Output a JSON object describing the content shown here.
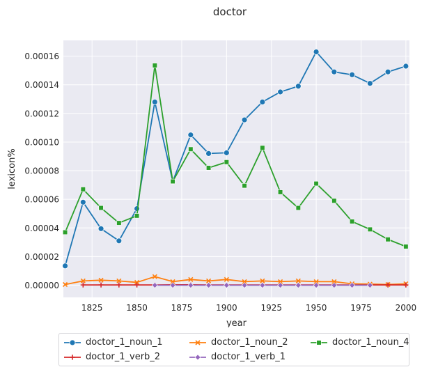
{
  "chart_data": {
    "type": "line",
    "title": "doctor",
    "xlabel": "year",
    "ylabel": "lexicon%",
    "xlim": [
      1809,
      2002
    ],
    "ylim": [
      -8.5e-06,
      0.000171
    ],
    "xticks": [
      1825,
      1850,
      1875,
      1900,
      1925,
      1950,
      1975,
      2000
    ],
    "xtick_labels": [
      "1825",
      "1850",
      "1875",
      "1900",
      "1925",
      "1950",
      "1975",
      "2000"
    ],
    "yticks": [
      0,
      2e-05,
      4e-05,
      6e-05,
      8e-05,
      0.0001,
      0.00012,
      0.00014,
      0.00016
    ],
    "ytick_labels": [
      "0.00000",
      "0.00002",
      "0.00004",
      "0.00006",
      "0.00008",
      "0.00010",
      "0.00012",
      "0.00014",
      "0.00016"
    ],
    "grid": true,
    "legend_position": "bottom",
    "series": [
      {
        "name": "doctor_1_noun_1",
        "color": "#1f77b4",
        "marker": "circle",
        "x": [
          1810,
          1820,
          1830,
          1840,
          1850,
          1860,
          1870,
          1880,
          1890,
          1900,
          1910,
          1920,
          1930,
          1940,
          1950,
          1960,
          1970,
          1980,
          1990,
          2000
        ],
        "values": [
          1.35e-05,
          5.8e-05,
          3.95e-05,
          3.1e-05,
          5.35e-05,
          0.000128,
          7.25e-05,
          0.000105,
          9.2e-05,
          9.25e-05,
          0.0001155,
          0.000128,
          0.000135,
          0.000139,
          0.000163,
          0.000149,
          0.000147,
          0.000141,
          0.000149,
          0.000153
        ]
      },
      {
        "name": "doctor_1_noun_2",
        "color": "#ff7f0e",
        "marker": "x",
        "x": [
          1810,
          1820,
          1830,
          1840,
          1850,
          1860,
          1870,
          1880,
          1890,
          1900,
          1910,
          1920,
          1930,
          1940,
          1950,
          1960,
          1970,
          1980,
          1990,
          2000
        ],
        "values": [
          5e-07,
          3e-06,
          3.5e-06,
          3e-06,
          2e-06,
          6e-06,
          2.5e-06,
          4e-06,
          3e-06,
          4e-06,
          2.5e-06,
          3e-06,
          2.5e-06,
          3e-06,
          2.5e-06,
          2.5e-06,
          1e-06,
          8e-07,
          5e-07,
          1e-06
        ]
      },
      {
        "name": "doctor_1_noun_4",
        "color": "#2ca02c",
        "marker": "square",
        "x": [
          1810,
          1820,
          1830,
          1840,
          1850,
          1860,
          1870,
          1880,
          1890,
          1900,
          1910,
          1920,
          1930,
          1940,
          1950,
          1960,
          1970,
          1980,
          1990,
          2000
        ],
        "values": [
          3.7e-05,
          6.7e-05,
          5.4e-05,
          4.35e-05,
          4.85e-05,
          0.0001535,
          7.25e-05,
          9.5e-05,
          8.2e-05,
          8.6e-05,
          6.95e-05,
          9.6e-05,
          6.5e-05,
          5.4e-05,
          7.1e-05,
          5.9e-05,
          4.45e-05,
          3.9e-05,
          3.2e-05,
          2.7e-05
        ]
      },
      {
        "name": "doctor_1_verb_2",
        "color": "#d62728",
        "marker": "plus",
        "x": [
          1820,
          1830,
          1840,
          1850,
          1860,
          1870,
          1880,
          1890,
          1900,
          1910,
          1920,
          1930,
          1940,
          1950,
          1960,
          1970,
          1980,
          1990,
          2000
        ],
        "values": [
          2e-07,
          2e-07,
          2e-07,
          2e-07,
          2e-07,
          3e-07,
          3e-07,
          2e-07,
          2e-07,
          2e-07,
          2e-07,
          2e-07,
          2e-07,
          2e-07,
          2e-07,
          2e-07,
          2e-07,
          2e-07,
          2e-07
        ]
      },
      {
        "name": "doctor_1_verb_1",
        "color": "#9467bd",
        "marker": "diamond",
        "x": [
          1860,
          1870,
          1880,
          1890,
          1900,
          1910,
          1920,
          1930,
          1940,
          1950,
          1960,
          1970,
          1980
        ],
        "values": [
          0,
          0,
          0,
          0,
          0,
          0,
          0,
          0,
          0,
          0,
          0,
          0,
          0
        ]
      }
    ]
  }
}
